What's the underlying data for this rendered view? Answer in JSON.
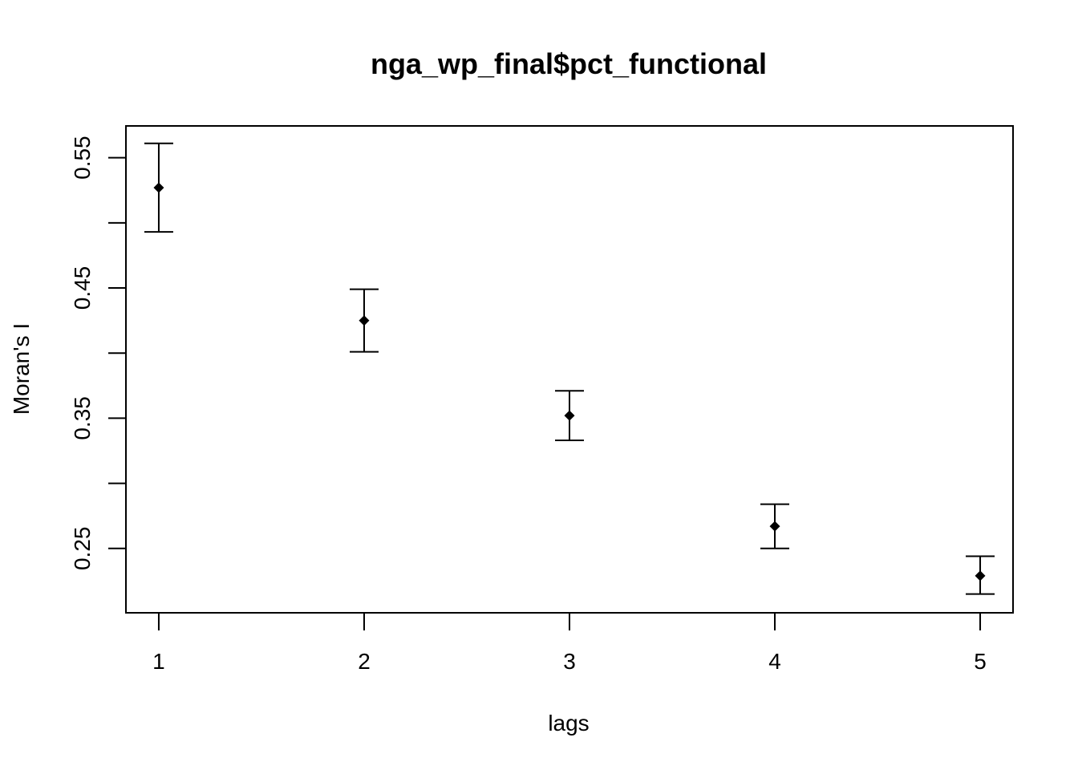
{
  "chart_data": {
    "type": "scatter",
    "title": "nga_wp_final$pct_functional",
    "xlabel": "lags",
    "ylabel": "Moran's  I",
    "x": [
      1,
      2,
      3,
      4,
      5
    ],
    "x_tick_labels": [
      "1",
      "2",
      "3",
      "4",
      "5"
    ],
    "y_tick_labels": [
      "0.25",
      "0.35",
      "0.45",
      "0.55"
    ],
    "y_ticks": [
      0.25,
      0.3,
      0.35,
      0.4,
      0.45,
      0.5,
      0.55
    ],
    "xlim": [
      0.84,
      5.16
    ],
    "ylim": [
      0.2006,
      0.5744
    ],
    "series": [
      {
        "values": [
          0.527,
          0.425,
          0.352,
          0.267,
          0.229
        ],
        "error_low": [
          0.493,
          0.401,
          0.333,
          0.25,
          0.215
        ],
        "error_high": [
          0.561,
          0.449,
          0.371,
          0.284,
          0.244
        ]
      }
    ],
    "grid": false,
    "legend": "none",
    "color": "#000000"
  }
}
